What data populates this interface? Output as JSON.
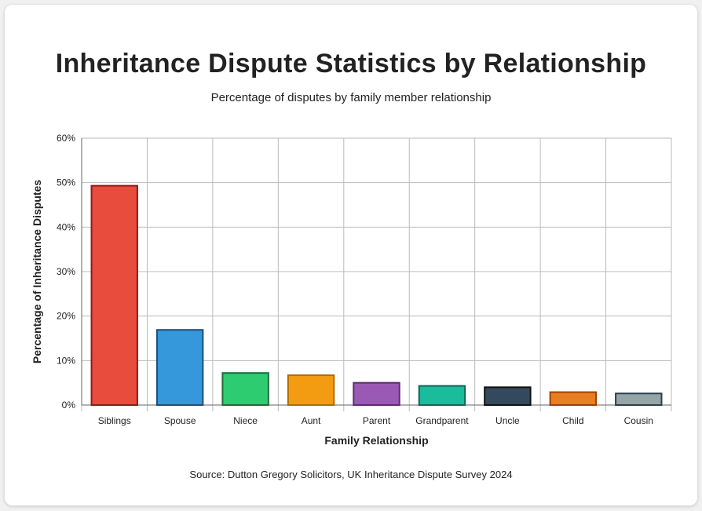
{
  "chart_data": {
    "type": "bar",
    "title": "Inheritance Dispute Statistics by Relationship",
    "subtitle": "Percentage of disputes by family member relationship",
    "xlabel": "Family Relationship",
    "ylabel": "Percentage of Inheritance Disputes",
    "source": "Source: Dutton Gregory Solicitors, UK Inheritance Dispute Survey 2024",
    "categories": [
      "Siblings",
      "Spouse",
      "Niece",
      "Aunt",
      "Parent",
      "Grandparent",
      "Uncle",
      "Child",
      "Cousin"
    ],
    "values": [
      49.3,
      16.9,
      7.2,
      6.7,
      5.0,
      4.3,
      4.0,
      2.9,
      2.6
    ],
    "colors": [
      "#e74c3c",
      "#3498db",
      "#2ecc71",
      "#f39c12",
      "#9b59b6",
      "#1abc9c",
      "#34495e",
      "#e67e22",
      "#95a5a6"
    ],
    "border_colors": [
      "#8b1a1a",
      "#1f4e79",
      "#1e6b3a",
      "#b36b00",
      "#5b2c6f",
      "#0e6655",
      "#111111",
      "#a04000",
      "#2c3e50"
    ],
    "ylim": [
      0,
      60
    ],
    "yticks": [
      "0%",
      "10%",
      "20%",
      "30%",
      "40%",
      "50%",
      "60%"
    ],
    "grid": true,
    "legend": "none"
  }
}
